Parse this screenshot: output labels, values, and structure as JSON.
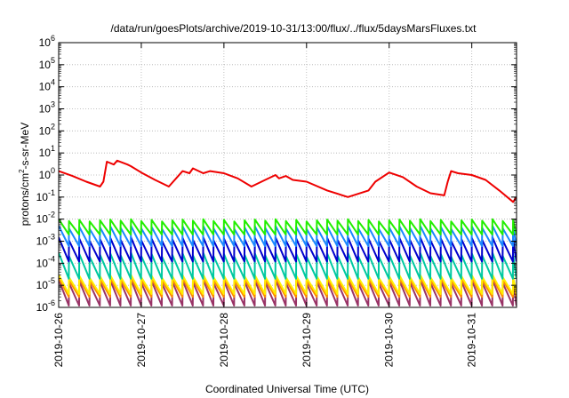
{
  "chart_data": {
    "type": "line",
    "title": "/data/run/goesPlots/archive/2019-10-31/13:00/flux/../flux/5daysMarsFluxes.txt",
    "xlabel": "Coordinated Universal Time (UTC)",
    "ylabel": {
      "prefix": "protons/cm",
      "sup": "2",
      "suffix": "-s-sr-MeV"
    },
    "y_scale": "log",
    "ylim": [
      1e-06,
      1000000.0
    ],
    "y_ticks": [
      {
        "base": "10",
        "exp": "-6"
      },
      {
        "base": "10",
        "exp": "-5"
      },
      {
        "base": "10",
        "exp": "-4"
      },
      {
        "base": "10",
        "exp": "-3"
      },
      {
        "base": "10",
        "exp": "-2"
      },
      {
        "base": "10",
        "exp": "-1"
      },
      {
        "base": "10",
        "exp": "0"
      },
      {
        "base": "10",
        "exp": "1"
      },
      {
        "base": "10",
        "exp": "2"
      },
      {
        "base": "10",
        "exp": "3"
      },
      {
        "base": "10",
        "exp": "4"
      },
      {
        "base": "10",
        "exp": "5"
      },
      {
        "base": "10",
        "exp": "6"
      }
    ],
    "xlim": [
      "2019-10-26T00:00",
      "2019-10-31T13:00"
    ],
    "x_ticks": [
      "2019-10-26",
      "2019-10-27",
      "2019-10-28",
      "2019-10-29",
      "2019-10-30",
      "2019-10-31"
    ],
    "grid": true,
    "series": [
      {
        "color": "#ee0000",
        "x": [
          "2019-10-26T00:00",
          "2019-10-26T04:00",
          "2019-10-26T08:00",
          "2019-10-26T12:00",
          "2019-10-26T13:00",
          "2019-10-26T14:00",
          "2019-10-26T16:00",
          "2019-10-26T17:00",
          "2019-10-26T20:00",
          "2019-10-26T21:00",
          "2019-10-27T00:00",
          "2019-10-27T04:00",
          "2019-10-27T08:00",
          "2019-10-27T12:00",
          "2019-10-27T14:00",
          "2019-10-27T15:00",
          "2019-10-27T18:00",
          "2019-10-27T20:00",
          "2019-10-28T00:00",
          "2019-10-28T04:00",
          "2019-10-28T08:00",
          "2019-10-28T12:00",
          "2019-10-28T15:00",
          "2019-10-28T16:00",
          "2019-10-28T18:00",
          "2019-10-28T20:00",
          "2019-10-29T00:00",
          "2019-10-29T06:00",
          "2019-10-29T12:00",
          "2019-10-29T18:00",
          "2019-10-29T20:00",
          "2019-10-30T00:00",
          "2019-10-30T04:00",
          "2019-10-30T08:00",
          "2019-10-30T12:00",
          "2019-10-30T16:00",
          "2019-10-30T17:00",
          "2019-10-30T18:00",
          "2019-10-30T20:00",
          "2019-10-31T00:00",
          "2019-10-31T04:00",
          "2019-10-31T08:00",
          "2019-10-31T12:00",
          "2019-10-31T13:00"
        ],
        "y": [
          1.5,
          0.9,
          0.5,
          0.3,
          0.5,
          4,
          3,
          4.5,
          3,
          2.5,
          1.3,
          0.6,
          0.3,
          1.5,
          1.2,
          2,
          1.2,
          1.5,
          1.2,
          0.7,
          0.3,
          0.6,
          1.0,
          0.7,
          0.9,
          0.6,
          0.5,
          0.2,
          0.1,
          0.2,
          0.5,
          1.3,
          0.8,
          0.3,
          0.15,
          0.12,
          0.5,
          1.5,
          1.2,
          1.0,
          0.6,
          0.2,
          0.06,
          0.1
        ]
      },
      {
        "color": "#22ee00",
        "x": [
          "2019-10-26",
          "2019-10-31T13:00"
        ],
        "y_min": 0.002,
        "y_max": 0.01
      },
      {
        "color": "#1a88ff",
        "x": [
          "2019-10-26",
          "2019-10-31T13:00"
        ],
        "y_min": 0.0006,
        "y_max": 0.005
      },
      {
        "color": "#0000cc",
        "x": [
          "2019-10-26",
          "2019-10-31T13:00"
        ],
        "y_min": 0.00012,
        "y_max": 0.0015
      },
      {
        "color": "#00c8a0",
        "x": [
          "2019-10-26",
          "2019-10-31T13:00"
        ],
        "y_min": 2e-05,
        "y_max": 0.0003
      },
      {
        "color": "#ffee00",
        "x": [
          "2019-10-26",
          "2019-10-31T13:00"
        ],
        "y_min": 4e-06,
        "y_max": 3e-05
      },
      {
        "color": "#ff8c00",
        "x": [
          "2019-10-26",
          "2019-10-31T13:00"
        ],
        "y_min": 3e-06,
        "y_max": 2.2e-05
      },
      {
        "color": "#993366",
        "x": [
          "2019-10-26",
          "2019-10-31T13:00"
        ],
        "y_min": 1.2e-06,
        "y_max": 1.8e-05
      }
    ]
  }
}
